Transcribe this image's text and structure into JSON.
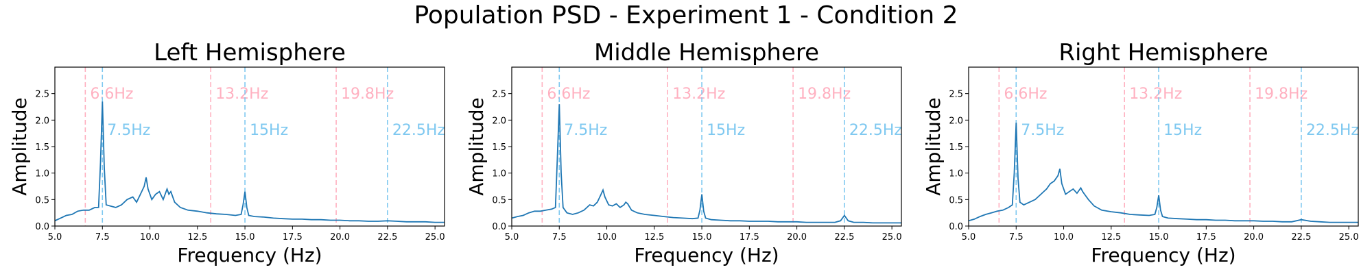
{
  "suptitle": "Population PSD - Experiment 1 - Condition 2",
  "colors": {
    "psd_line": "#1f77b4",
    "pink": "#ffb0c0",
    "blue": "#7ec8f0",
    "axis": "#000000"
  },
  "chart_data": [
    {
      "type": "line",
      "title": "Left Hemisphere",
      "xlabel": "Frequency (Hz)",
      "ylabel": "Amplitude",
      "xlim": [
        5.0,
        25.5
      ],
      "ylim": [
        0.0,
        3.0
      ],
      "xticks": [
        "5.0",
        "7.5",
        "10.0",
        "12.5",
        "15.0",
        "17.5",
        "20.0",
        "22.5",
        "25.0"
      ],
      "yticks": [
        "0.0",
        "0.5",
        "1.0",
        "1.5",
        "2.0",
        "2.5"
      ],
      "grid": false,
      "vlines": [
        {
          "x": 6.6,
          "label": "6.6Hz",
          "color": "pink"
        },
        {
          "x": 13.2,
          "label": "13.2Hz",
          "color": "pink"
        },
        {
          "x": 19.8,
          "label": "19.8Hz",
          "color": "pink"
        },
        {
          "x": 7.5,
          "label": "7.5Hz",
          "color": "blue"
        },
        {
          "x": 15.0,
          "label": "15Hz",
          "color": "blue"
        },
        {
          "x": 22.5,
          "label": "22.5Hz",
          "color": "blue"
        }
      ],
      "series": [
        {
          "x": [
            5.0,
            5.3,
            5.6,
            5.9,
            6.2,
            6.5,
            6.8,
            7.1,
            7.3,
            7.4,
            7.5,
            7.6,
            7.7,
            7.9,
            8.2,
            8.5,
            8.8,
            9.1,
            9.3,
            9.5,
            9.7,
            9.8,
            9.9,
            10.1,
            10.3,
            10.5,
            10.7,
            10.9,
            11.0,
            11.1,
            11.3,
            11.6,
            12.0,
            12.5,
            13.0,
            13.5,
            14.0,
            14.5,
            14.8,
            14.9,
            15.0,
            15.1,
            15.2,
            15.5,
            16.0,
            16.5,
            17.0,
            17.5,
            18.0,
            18.5,
            19.0,
            19.5,
            20.0,
            20.5,
            21.0,
            21.5,
            22.0,
            22.5,
            23.0,
            23.5,
            24.0,
            24.5,
            25.0,
            25.5
          ],
          "y": [
            0.1,
            0.15,
            0.2,
            0.22,
            0.28,
            0.3,
            0.3,
            0.35,
            0.35,
            1.2,
            2.35,
            1.1,
            0.4,
            0.38,
            0.35,
            0.4,
            0.5,
            0.55,
            0.45,
            0.6,
            0.75,
            0.92,
            0.7,
            0.5,
            0.6,
            0.65,
            0.5,
            0.7,
            0.6,
            0.65,
            0.45,
            0.35,
            0.3,
            0.28,
            0.25,
            0.23,
            0.22,
            0.2,
            0.22,
            0.4,
            0.65,
            0.35,
            0.2,
            0.18,
            0.17,
            0.15,
            0.14,
            0.13,
            0.13,
            0.12,
            0.12,
            0.11,
            0.11,
            0.1,
            0.1,
            0.09,
            0.09,
            0.1,
            0.09,
            0.08,
            0.08,
            0.08,
            0.07,
            0.07
          ]
        }
      ]
    },
    {
      "type": "line",
      "title": "Middle Hemisphere",
      "xlabel": "Frequency (Hz)",
      "ylabel": "Amplitude",
      "xlim": [
        5.0,
        25.5
      ],
      "ylim": [
        0.0,
        3.0
      ],
      "xticks": [
        "5.0",
        "7.5",
        "10.0",
        "12.5",
        "15.0",
        "17.5",
        "20.0",
        "22.5",
        "25.0"
      ],
      "yticks": [
        "0.0",
        "0.5",
        "1.0",
        "1.5",
        "2.0",
        "2.5"
      ],
      "grid": false,
      "vlines": [
        {
          "x": 6.6,
          "label": "6.6Hz",
          "color": "pink"
        },
        {
          "x": 13.2,
          "label": "13.2Hz",
          "color": "pink"
        },
        {
          "x": 19.8,
          "label": "19.8Hz",
          "color": "pink"
        },
        {
          "x": 7.5,
          "label": "7.5Hz",
          "color": "blue"
        },
        {
          "x": 15.0,
          "label": "15Hz",
          "color": "blue"
        },
        {
          "x": 22.5,
          "label": "22.5Hz",
          "color": "blue"
        }
      ],
      "series": [
        {
          "x": [
            5.0,
            5.3,
            5.6,
            5.9,
            6.2,
            6.5,
            6.8,
            7.1,
            7.3,
            7.4,
            7.5,
            7.6,
            7.7,
            7.9,
            8.2,
            8.5,
            8.8,
            9.1,
            9.3,
            9.5,
            9.7,
            9.8,
            9.9,
            10.1,
            10.3,
            10.5,
            10.7,
            10.9,
            11.0,
            11.1,
            11.3,
            11.6,
            12.0,
            12.5,
            13.0,
            13.5,
            14.0,
            14.5,
            14.8,
            14.9,
            15.0,
            15.1,
            15.2,
            15.5,
            16.0,
            16.5,
            17.0,
            17.5,
            18.0,
            18.5,
            19.0,
            19.5,
            20.0,
            20.5,
            21.0,
            21.5,
            22.0,
            22.3,
            22.5,
            22.7,
            23.0,
            23.5,
            24.0,
            24.5,
            25.0,
            25.5
          ],
          "y": [
            0.15,
            0.18,
            0.2,
            0.25,
            0.28,
            0.28,
            0.3,
            0.32,
            0.35,
            1.3,
            2.3,
            1.0,
            0.35,
            0.25,
            0.22,
            0.25,
            0.3,
            0.4,
            0.38,
            0.45,
            0.6,
            0.68,
            0.55,
            0.4,
            0.38,
            0.42,
            0.35,
            0.4,
            0.45,
            0.42,
            0.3,
            0.25,
            0.22,
            0.2,
            0.18,
            0.16,
            0.15,
            0.14,
            0.15,
            0.3,
            0.6,
            0.28,
            0.15,
            0.12,
            0.11,
            0.1,
            0.1,
            0.09,
            0.09,
            0.09,
            0.08,
            0.08,
            0.08,
            0.07,
            0.07,
            0.07,
            0.07,
            0.1,
            0.2,
            0.1,
            0.07,
            0.07,
            0.06,
            0.06,
            0.06,
            0.06
          ]
        }
      ]
    },
    {
      "type": "line",
      "title": "Right Hemisphere",
      "xlabel": "Frequency (Hz)",
      "ylabel": "Amplitude",
      "xlim": [
        5.0,
        25.5
      ],
      "ylim": [
        0.0,
        3.0
      ],
      "xticks": [
        "5.0",
        "7.5",
        "10.0",
        "12.5",
        "15.0",
        "17.5",
        "20.0",
        "22.5",
        "25.0"
      ],
      "yticks": [
        "0.0",
        "0.5",
        "1.0",
        "1.5",
        "2.0",
        "2.5"
      ],
      "grid": false,
      "vlines": [
        {
          "x": 6.6,
          "label": "6.6Hz",
          "color": "pink"
        },
        {
          "x": 13.2,
          "label": "13.2Hz",
          "color": "pink"
        },
        {
          "x": 19.8,
          "label": "19.8Hz",
          "color": "pink"
        },
        {
          "x": 7.5,
          "label": "7.5Hz",
          "color": "blue"
        },
        {
          "x": 15.0,
          "label": "15Hz",
          "color": "blue"
        },
        {
          "x": 22.5,
          "label": "22.5Hz",
          "color": "blue"
        }
      ],
      "series": [
        {
          "x": [
            5.0,
            5.3,
            5.6,
            5.9,
            6.2,
            6.5,
            6.8,
            7.1,
            7.3,
            7.4,
            7.5,
            7.6,
            7.7,
            7.9,
            8.2,
            8.5,
            8.8,
            9.1,
            9.3,
            9.5,
            9.7,
            9.8,
            9.9,
            10.1,
            10.3,
            10.5,
            10.7,
            10.9,
            11.0,
            11.1,
            11.3,
            11.6,
            12.0,
            12.5,
            13.0,
            13.5,
            14.0,
            14.5,
            14.8,
            14.9,
            15.0,
            15.1,
            15.2,
            15.5,
            16.0,
            16.5,
            17.0,
            17.5,
            18.0,
            18.5,
            19.0,
            19.5,
            20.0,
            20.5,
            21.0,
            21.5,
            22.0,
            22.5,
            23.0,
            23.5,
            24.0,
            24.5,
            25.0,
            25.5
          ],
          "y": [
            0.1,
            0.13,
            0.18,
            0.22,
            0.25,
            0.28,
            0.3,
            0.35,
            0.4,
            1.0,
            1.95,
            0.9,
            0.45,
            0.4,
            0.45,
            0.5,
            0.6,
            0.7,
            0.8,
            0.85,
            0.95,
            1.08,
            0.8,
            0.6,
            0.65,
            0.7,
            0.62,
            0.72,
            0.65,
            0.6,
            0.5,
            0.38,
            0.3,
            0.27,
            0.25,
            0.22,
            0.21,
            0.2,
            0.22,
            0.35,
            0.58,
            0.3,
            0.18,
            0.15,
            0.14,
            0.13,
            0.12,
            0.12,
            0.11,
            0.11,
            0.1,
            0.1,
            0.1,
            0.09,
            0.09,
            0.08,
            0.08,
            0.12,
            0.09,
            0.08,
            0.07,
            0.07,
            0.07,
            0.07
          ]
        }
      ]
    }
  ]
}
